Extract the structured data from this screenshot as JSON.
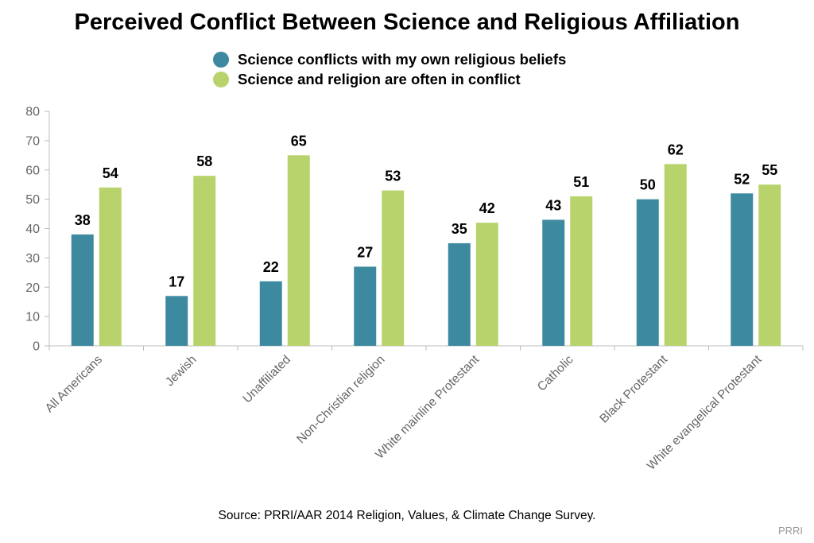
{
  "title": "Perceived Conflict Between Science and Religious Affiliation",
  "legend": [
    {
      "label": "Science conflicts with my own religious beliefs",
      "color": "#3d8aa0"
    },
    {
      "label": "Science and religion are often in conflict",
      "color": "#b9d36c"
    }
  ],
  "source": "Source: PRRI/AAR 2014 Religion, Values, & Climate Change Survey.",
  "brand": "PRRI",
  "chart_data": {
    "type": "bar",
    "title": "Perceived Conflict Between Science and Religious Affiliation",
    "xlabel": "",
    "ylabel": "",
    "ylim": [
      0,
      80
    ],
    "yticks": [
      0,
      10,
      20,
      30,
      40,
      50,
      60,
      70,
      80
    ],
    "grid": false,
    "legend_position": "top-center",
    "categories": [
      "All Americans",
      "Jewish",
      "Unaffiliated",
      "Non-Christian religion",
      "White mainline Protestant",
      "Catholic",
      "Black Protestant",
      "White evangelical Protestant"
    ],
    "series": [
      {
        "name": "Science conflicts with my own religious beliefs",
        "color": "#3d8aa0",
        "values": [
          38,
          17,
          22,
          27,
          35,
          43,
          50,
          52
        ]
      },
      {
        "name": "Science and religion are often in conflict",
        "color": "#b9d36c",
        "values": [
          54,
          58,
          65,
          53,
          42,
          51,
          62,
          55
        ]
      }
    ]
  }
}
